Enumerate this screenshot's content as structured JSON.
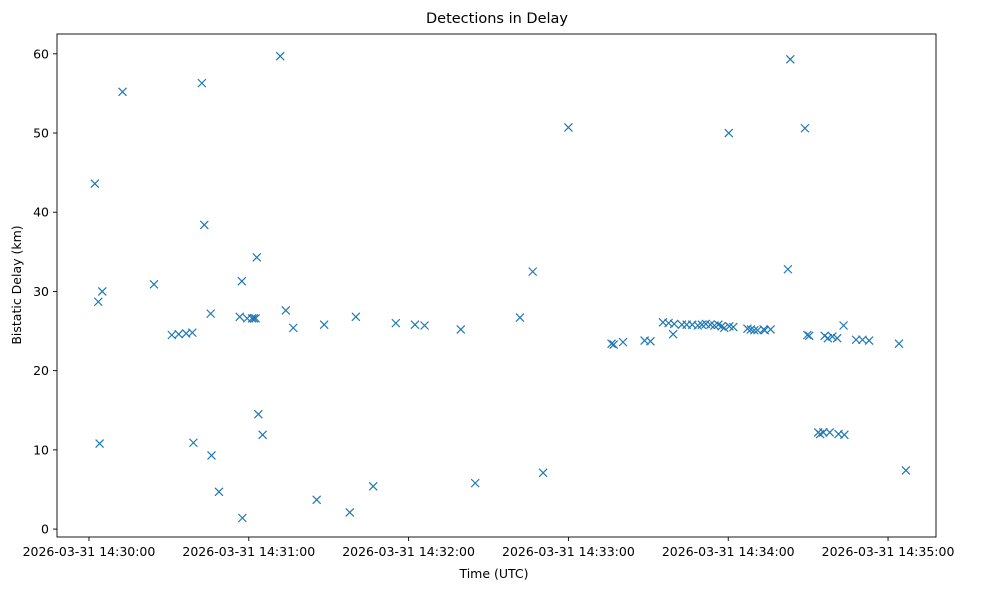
{
  "chart_data": {
    "type": "scatter",
    "title": "Detections in Delay",
    "xlabel": "Time (UTC)",
    "ylabel": "Bistatic Delay (km)",
    "x_unit": "seconds after 2026-03-31 14:30:00",
    "xlim": [
      -12,
      318
    ],
    "ylim": [
      -1,
      62.5
    ],
    "grid": false,
    "marker": "x",
    "color": "#1f77b4",
    "x_ticks": [
      {
        "value": 0,
        "label": "2026-03-31 14:30:00"
      },
      {
        "value": 60,
        "label": "2026-03-31 14:31:00"
      },
      {
        "value": 120,
        "label": "2026-03-31 14:32:00"
      },
      {
        "value": 180,
        "label": "2026-03-31 14:33:00"
      },
      {
        "value": 240,
        "label": "2026-03-31 14:34:00"
      },
      {
        "value": 300,
        "label": "2026-03-31 14:35:00"
      }
    ],
    "y_ticks": [
      {
        "value": 0,
        "label": "0"
      },
      {
        "value": 10,
        "label": "10"
      },
      {
        "value": 20,
        "label": "20"
      },
      {
        "value": 30,
        "label": "30"
      },
      {
        "value": 40,
        "label": "40"
      },
      {
        "value": 50,
        "label": "50"
      },
      {
        "value": 60,
        "label": "60"
      }
    ],
    "points": [
      [
        2.2,
        43.6
      ],
      [
        3.5,
        28.7
      ],
      [
        4.0,
        10.8
      ],
      [
        5.0,
        30.0
      ],
      [
        12.6,
        55.2
      ],
      [
        24.4,
        30.9
      ],
      [
        31.1,
        24.5
      ],
      [
        33.7,
        24.6
      ],
      [
        36.5,
        24.7
      ],
      [
        38.8,
        24.8
      ],
      [
        39.2,
        10.9
      ],
      [
        42.4,
        56.3
      ],
      [
        43.3,
        38.4
      ],
      [
        45.7,
        27.2
      ],
      [
        46.0,
        9.3
      ],
      [
        48.8,
        4.7
      ],
      [
        56.6,
        26.8
      ],
      [
        57.4,
        31.3
      ],
      [
        57.6,
        1.4
      ],
      [
        59.4,
        26.6
      ],
      [
        61.2,
        26.6
      ],
      [
        61.9,
        26.6
      ],
      [
        62.6,
        26.6
      ],
      [
        63.0,
        34.3
      ],
      [
        63.6,
        14.5
      ],
      [
        65.2,
        11.9
      ],
      [
        71.8,
        59.7
      ],
      [
        73.9,
        27.6
      ],
      [
        76.7,
        25.4
      ],
      [
        85.5,
        3.7
      ],
      [
        88.3,
        25.8
      ],
      [
        97.9,
        2.1
      ],
      [
        100.2,
        26.8
      ],
      [
        106.7,
        5.4
      ],
      [
        115.2,
        26.0
      ],
      [
        122.4,
        25.8
      ],
      [
        126.0,
        25.7
      ],
      [
        139.6,
        25.2
      ],
      [
        145.0,
        5.8
      ],
      [
        161.8,
        26.7
      ],
      [
        166.6,
        32.5
      ],
      [
        170.5,
        7.1
      ],
      [
        180.0,
        50.7
      ],
      [
        196.2,
        23.4
      ],
      [
        197.0,
        23.3
      ],
      [
        200.5,
        23.6
      ],
      [
        208.6,
        23.8
      ],
      [
        210.8,
        23.7
      ],
      [
        215.5,
        26.1
      ],
      [
        217.6,
        26.0
      ],
      [
        219.3,
        24.6
      ],
      [
        219.7,
        25.9
      ],
      [
        222.6,
        25.8
      ],
      [
        224.4,
        25.8
      ],
      [
        226.5,
        25.8
      ],
      [
        228.6,
        25.7
      ],
      [
        230.1,
        25.8
      ],
      [
        231.6,
        25.9
      ],
      [
        233.3,
        25.8
      ],
      [
        234.8,
        25.7
      ],
      [
        236.3,
        25.8
      ],
      [
        237.5,
        25.6
      ],
      [
        238.5,
        25.4
      ],
      [
        240.2,
        50.0
      ],
      [
        240.4,
        25.6
      ],
      [
        241.9,
        25.5
      ],
      [
        247.2,
        25.3
      ],
      [
        248.5,
        25.2
      ],
      [
        249.8,
        25.1
      ],
      [
        251.0,
        25.1
      ],
      [
        253.3,
        25.2
      ],
      [
        253.7,
        25.1
      ],
      [
        255.9,
        25.2
      ],
      [
        262.4,
        32.8
      ],
      [
        263.3,
        59.3
      ],
      [
        268.8,
        50.6
      ],
      [
        269.7,
        24.5
      ],
      [
        270.4,
        24.4
      ],
      [
        273.8,
        12.2
      ],
      [
        274.5,
        12.0
      ],
      [
        275.7,
        12.2
      ],
      [
        276.2,
        24.4
      ],
      [
        277.4,
        24.1
      ],
      [
        278.1,
        12.2
      ],
      [
        279.1,
        24.3
      ],
      [
        280.9,
        24.1
      ],
      [
        281.4,
        12.0
      ],
      [
        283.3,
        25.7
      ],
      [
        283.6,
        11.9
      ],
      [
        288.0,
        23.9
      ],
      [
        290.4,
        23.9
      ],
      [
        292.9,
        23.8
      ],
      [
        304.1,
        23.4
      ],
      [
        306.7,
        7.4
      ]
    ]
  }
}
